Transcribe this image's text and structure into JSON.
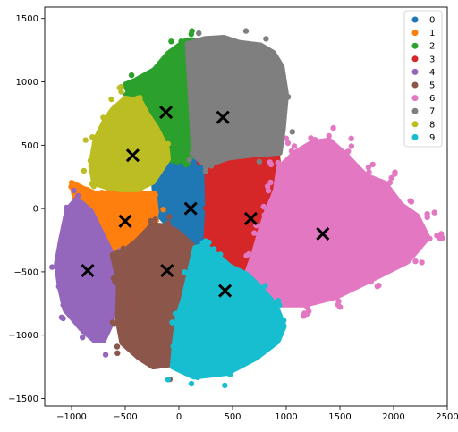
{
  "chart_data": {
    "type": "scatter",
    "title": "",
    "xlabel": "",
    "ylabel": "",
    "xlim": [
      -1250,
      2500
    ],
    "ylim": [
      -1560,
      1590
    ],
    "x_ticks": [
      -1000,
      -500,
      0,
      500,
      1000,
      1500,
      2000,
      2500
    ],
    "y_ticks": [
      -1500,
      -1000,
      -500,
      0,
      500,
      1000,
      1500
    ],
    "x_tick_labels": [
      "−1000",
      "−500",
      "0",
      "500",
      "1000",
      "1500",
      "2000",
      "2500"
    ],
    "y_tick_labels": [
      "−1500",
      "−1000",
      "−500",
      "0",
      "500",
      "1000",
      "1500"
    ],
    "grid": false,
    "legend_position": "top-right",
    "series": [
      {
        "name": "0",
        "color": "#1f77b4",
        "centroid": [
          110,
          0
        ],
        "region": [
          [
            -280,
            420
          ],
          [
            -130,
            395
          ],
          [
            -20,
            370
          ],
          [
            40,
            370
          ],
          [
            140,
            420
          ],
          [
            260,
            340
          ],
          [
            270,
            -5
          ],
          [
            245,
            -290
          ],
          [
            150,
            -310
          ],
          [
            -20,
            -180
          ],
          [
            -100,
            -130
          ],
          [
            -210,
            -30
          ],
          [
            -235,
            220
          ]
        ]
      },
      {
        "name": "1",
        "color": "#ff7f0e",
        "centroid": [
          -500,
          -100
        ],
        "region": [
          [
            -1000,
            205
          ],
          [
            -870,
            150
          ],
          [
            -750,
            110
          ],
          [
            -540,
            150
          ],
          [
            -330,
            120
          ],
          [
            -230,
            120
          ],
          [
            -210,
            -30
          ],
          [
            -240,
            -110
          ],
          [
            -390,
            -255
          ],
          [
            -620,
            -365
          ],
          [
            -810,
            -130
          ],
          [
            -960,
            40
          ]
        ]
      },
      {
        "name": "2",
        "color": "#2ca02c",
        "centroid": [
          -120,
          760
        ],
        "region": [
          [
            -500,
            980
          ],
          [
            -410,
            1010
          ],
          [
            -230,
            1095
          ],
          [
            -100,
            1225
          ],
          [
            70,
            1330
          ],
          [
            150,
            1330
          ],
          [
            145,
            420
          ],
          [
            60,
            380
          ],
          [
            -20,
            370
          ],
          [
            -120,
            390
          ],
          [
            -210,
            420
          ],
          [
            -270,
            460
          ],
          [
            -310,
            600
          ],
          [
            -360,
            700
          ],
          [
            -460,
            900
          ]
        ]
      },
      {
        "name": "3",
        "color": "#d62728",
        "centroid": [
          670,
          -80
        ],
        "region": [
          [
            260,
            330
          ],
          [
            460,
            400
          ],
          [
            700,
            425
          ],
          [
            915,
            440
          ],
          [
            930,
            320
          ],
          [
            900,
            140
          ],
          [
            820,
            -20
          ],
          [
            760,
            -170
          ],
          [
            700,
            -350
          ],
          [
            630,
            -520
          ],
          [
            480,
            -460
          ],
          [
            370,
            -380
          ],
          [
            250,
            -290
          ],
          [
            270,
            -5
          ]
        ]
      },
      {
        "name": "4",
        "color": "#9467bd",
        "centroid": [
          -850,
          -490
        ],
        "region": [
          [
            -1040,
            -10
          ],
          [
            -960,
            70
          ],
          [
            -900,
            40
          ],
          [
            -820,
            -20
          ],
          [
            -620,
            -365
          ],
          [
            -520,
            -430
          ],
          [
            -560,
            -570
          ],
          [
            -590,
            -720
          ],
          [
            -630,
            -910
          ],
          [
            -700,
            -1040
          ],
          [
            -790,
            -1040
          ],
          [
            -910,
            -950
          ],
          [
            -1060,
            -800
          ],
          [
            -1110,
            -620
          ],
          [
            -1140,
            -440
          ],
          [
            -1100,
            -250
          ]
        ]
      },
      {
        "name": "5",
        "color": "#8c564b",
        "centroid": [
          -110,
          -490
        ],
        "region": [
          [
            -620,
            -365
          ],
          [
            -500,
            -330
          ],
          [
            -390,
            -255
          ],
          [
            -250,
            -130
          ],
          [
            -110,
            -140
          ],
          [
            -20,
            -180
          ],
          [
            80,
            -255
          ],
          [
            150,
            -310
          ],
          [
            100,
            -500
          ],
          [
            40,
            -720
          ],
          [
            -10,
            -850
          ],
          [
            -40,
            -1060
          ],
          [
            -60,
            -1230
          ],
          [
            -240,
            -1250
          ],
          [
            -370,
            -1180
          ],
          [
            -530,
            -1060
          ],
          [
            -570,
            -880
          ],
          [
            -560,
            -570
          ]
        ]
      },
      {
        "name": "6",
        "color": "#e377c2",
        "centroid": [
          1340,
          -200
        ],
        "region": [
          [
            930,
            320
          ],
          [
            1080,
            440
          ],
          [
            1240,
            520
          ],
          [
            1400,
            540
          ],
          [
            1560,
            420
          ],
          [
            1740,
            260
          ],
          [
            1920,
            200
          ],
          [
            2070,
            30
          ],
          [
            2220,
            -60
          ],
          [
            2320,
            -230
          ],
          [
            2130,
            -420
          ],
          [
            1800,
            -560
          ],
          [
            1460,
            -700
          ],
          [
            1180,
            -760
          ],
          [
            900,
            -760
          ],
          [
            730,
            -600
          ],
          [
            630,
            -520
          ],
          [
            700,
            -350
          ],
          [
            760,
            -170
          ],
          [
            820,
            -20
          ],
          [
            900,
            140
          ]
        ]
      },
      {
        "name": "7",
        "color": "#7f7f7f",
        "centroid": [
          410,
          720
        ],
        "region": [
          [
            80,
            1300
          ],
          [
            240,
            1340
          ],
          [
            420,
            1350
          ],
          [
            560,
            1310
          ],
          [
            760,
            1290
          ],
          [
            880,
            1230
          ],
          [
            960,
            1120
          ],
          [
            1000,
            900
          ],
          [
            970,
            620
          ],
          [
            940,
            440
          ],
          [
            700,
            425
          ],
          [
            460,
            400
          ],
          [
            260,
            340
          ],
          [
            140,
            420
          ]
        ]
      },
      {
        "name": "8",
        "color": "#bcbd22",
        "centroid": [
          -430,
          420
        ],
        "region": [
          [
            -500,
            870
          ],
          [
            -360,
            850
          ],
          [
            -290,
            740
          ],
          [
            -210,
            640
          ],
          [
            -110,
            470
          ],
          [
            -100,
            390
          ],
          [
            -240,
            210
          ],
          [
            -390,
            150
          ],
          [
            -540,
            150
          ],
          [
            -680,
            170
          ],
          [
            -790,
            200
          ],
          [
            -820,
            340
          ],
          [
            -780,
            540
          ],
          [
            -700,
            680
          ],
          [
            -620,
            780
          ]
        ]
      },
      {
        "name": "9",
        "color": "#17becf",
        "centroid": [
          430,
          -650
        ],
        "region": [
          [
            150,
            -310
          ],
          [
            245,
            -290
          ],
          [
            370,
            -380
          ],
          [
            480,
            -460
          ],
          [
            630,
            -520
          ],
          [
            730,
            -600
          ],
          [
            900,
            -760
          ],
          [
            980,
            -930
          ],
          [
            920,
            -1050
          ],
          [
            720,
            -1180
          ],
          [
            450,
            -1300
          ],
          [
            140,
            -1330
          ],
          [
            -60,
            -1250
          ],
          [
            -40,
            -1060
          ],
          [
            -10,
            -850
          ],
          [
            40,
            -720
          ],
          [
            100,
            -500
          ]
        ]
      }
    ]
  }
}
